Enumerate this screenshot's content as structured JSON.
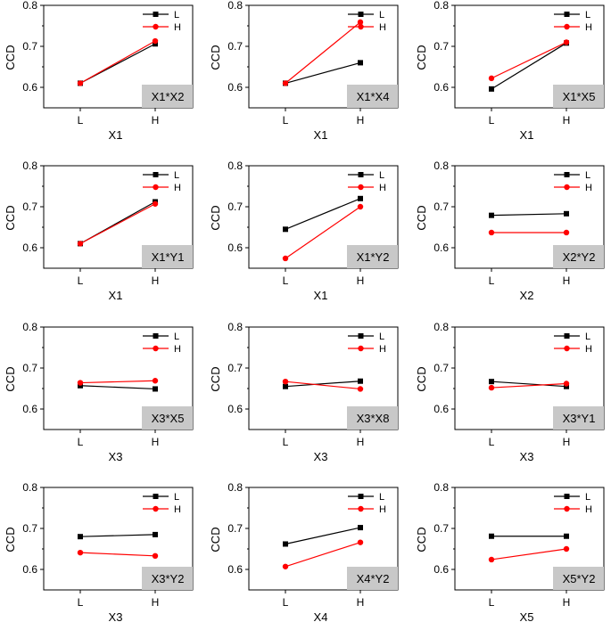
{
  "colors": {
    "L": "#000000",
    "H": "#ff0000",
    "label_box": "#c8c8c8"
  },
  "chart_data": [
    {
      "type": "line",
      "interaction": "X1*X2",
      "xlabel": "X1",
      "ylabel": "CCD",
      "categories": [
        "L",
        "H"
      ],
      "ylim": [
        0.55,
        0.8
      ],
      "yticks": [
        "0.6",
        "0.7",
        "0.8"
      ],
      "series": [
        {
          "name": "L",
          "values": [
            0.61,
            0.706
          ]
        },
        {
          "name": "H",
          "values": [
            0.61,
            0.713
          ]
        }
      ]
    },
    {
      "type": "line",
      "interaction": "X1*X4",
      "xlabel": "X1",
      "ylabel": "CCD",
      "categories": [
        "L",
        "H"
      ],
      "ylim": [
        0.55,
        0.8
      ],
      "yticks": [
        "0.6",
        "0.7",
        "0.8"
      ],
      "series": [
        {
          "name": "L",
          "values": [
            0.61,
            0.66
          ]
        },
        {
          "name": "H",
          "values": [
            0.61,
            0.759
          ]
        }
      ]
    },
    {
      "type": "line",
      "interaction": "X1*X5",
      "xlabel": "X1",
      "ylabel": "CCD",
      "categories": [
        "L",
        "H"
      ],
      "ylim": [
        0.55,
        0.8
      ],
      "yticks": [
        "0.6",
        "0.7",
        "0.8"
      ],
      "series": [
        {
          "name": "L",
          "values": [
            0.596,
            0.708
          ]
        },
        {
          "name": "H",
          "values": [
            0.622,
            0.71
          ]
        }
      ]
    },
    {
      "type": "line",
      "interaction": "X1*Y1",
      "xlabel": "X1",
      "ylabel": "CCD",
      "categories": [
        "L",
        "H"
      ],
      "ylim": [
        0.55,
        0.8
      ],
      "yticks": [
        "0.6",
        "0.7",
        "0.8"
      ],
      "series": [
        {
          "name": "L",
          "values": [
            0.61,
            0.712
          ]
        },
        {
          "name": "H",
          "values": [
            0.61,
            0.707
          ]
        }
      ]
    },
    {
      "type": "line",
      "interaction": "X1*Y2",
      "xlabel": "X1",
      "ylabel": "CCD",
      "categories": [
        "L",
        "H"
      ],
      "ylim": [
        0.55,
        0.8
      ],
      "yticks": [
        "0.6",
        "0.7",
        "0.8"
      ],
      "series": [
        {
          "name": "L",
          "values": [
            0.645,
            0.72
          ]
        },
        {
          "name": "H",
          "values": [
            0.574,
            0.7
          ]
        }
      ]
    },
    {
      "type": "line",
      "interaction": "X2*Y2",
      "xlabel": "X2",
      "ylabel": "CCD",
      "categories": [
        "L",
        "H"
      ],
      "ylim": [
        0.55,
        0.8
      ],
      "yticks": [
        "0.6",
        "0.7",
        "0.8"
      ],
      "series": [
        {
          "name": "L",
          "values": [
            0.679,
            0.683
          ]
        },
        {
          "name": "H",
          "values": [
            0.637,
            0.637
          ]
        }
      ]
    },
    {
      "type": "line",
      "interaction": "X3*X5",
      "xlabel": "X3",
      "ylabel": "CCD",
      "categories": [
        "L",
        "H"
      ],
      "ylim": [
        0.55,
        0.8
      ],
      "yticks": [
        "0.6",
        "0.7",
        "0.8"
      ],
      "series": [
        {
          "name": "L",
          "values": [
            0.657,
            0.649
          ]
        },
        {
          "name": "H",
          "values": [
            0.664,
            0.669
          ]
        }
      ]
    },
    {
      "type": "line",
      "interaction": "X3*X8",
      "xlabel": "X3",
      "ylabel": "CCD",
      "categories": [
        "L",
        "H"
      ],
      "ylim": [
        0.55,
        0.8
      ],
      "yticks": [
        "0.6",
        "0.7",
        "0.8"
      ],
      "series": [
        {
          "name": "L",
          "values": [
            0.655,
            0.668
          ]
        },
        {
          "name": "H",
          "values": [
            0.667,
            0.649
          ]
        }
      ]
    },
    {
      "type": "line",
      "interaction": "X3*Y1",
      "xlabel": "X3",
      "ylabel": "CCD",
      "categories": [
        "L",
        "H"
      ],
      "ylim": [
        0.55,
        0.8
      ],
      "yticks": [
        "0.6",
        "0.7",
        "0.8"
      ],
      "series": [
        {
          "name": "L",
          "values": [
            0.667,
            0.655
          ]
        },
        {
          "name": "H",
          "values": [
            0.652,
            0.662
          ]
        }
      ]
    },
    {
      "type": "line",
      "interaction": "X3*Y2",
      "xlabel": "X3",
      "ylabel": "CCD",
      "categories": [
        "L",
        "H"
      ],
      "ylim": [
        0.55,
        0.8
      ],
      "yticks": [
        "0.6",
        "0.7",
        "0.8"
      ],
      "series": [
        {
          "name": "L",
          "values": [
            0.68,
            0.685
          ]
        },
        {
          "name": "H",
          "values": [
            0.641,
            0.633
          ]
        }
      ]
    },
    {
      "type": "line",
      "interaction": "X4*Y2",
      "xlabel": "X4",
      "ylabel": "CCD",
      "categories": [
        "L",
        "H"
      ],
      "ylim": [
        0.55,
        0.8
      ],
      "yticks": [
        "0.6",
        "0.7",
        "0.8"
      ],
      "series": [
        {
          "name": "L",
          "values": [
            0.662,
            0.702
          ]
        },
        {
          "name": "H",
          "values": [
            0.607,
            0.666
          ]
        }
      ]
    },
    {
      "type": "line",
      "interaction": "X5*Y2",
      "xlabel": "X5",
      "ylabel": "CCD",
      "categories": [
        "L",
        "H"
      ],
      "ylim": [
        0.55,
        0.8
      ],
      "yticks": [
        "0.6",
        "0.7",
        "0.8"
      ],
      "series": [
        {
          "name": "L",
          "values": [
            0.681,
            0.681
          ]
        },
        {
          "name": "H",
          "values": [
            0.624,
            0.65
          ]
        }
      ]
    }
  ]
}
